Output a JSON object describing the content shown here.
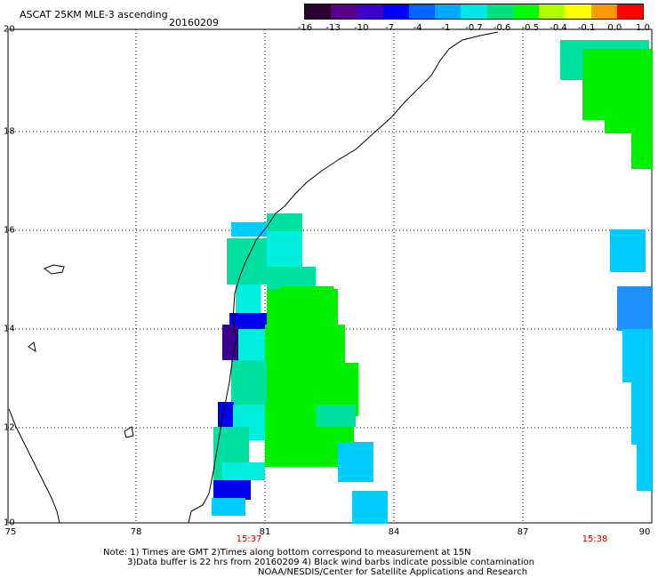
{
  "header": {
    "title": "ASCAT 25KM MLE-3 ascending",
    "date": "20160209"
  },
  "colorbar": {
    "ticks": [
      "-16",
      "-13",
      "-10",
      "-7",
      "-4",
      "-1",
      "-0.7",
      "-0.6",
      "-0.5",
      "-0.4",
      "-0.1",
      "0.0",
      "1.0"
    ],
    "colors": [
      "#2a0030",
      "#5a0088",
      "#3c00c8",
      "#0000ff",
      "#0066ff",
      "#00aaff",
      "#00e5e5",
      "#00e080",
      "#00ff00",
      "#b0ff00",
      "#ffff00",
      "#ff9900",
      "#ff0000"
    ]
  },
  "axes": {
    "lat_labels": [
      "20",
      "18",
      "16",
      "14",
      "12",
      "10"
    ],
    "lon_labels": [
      "75",
      "78",
      "81",
      "84",
      "87",
      "90"
    ],
    "times": [
      "15:37",
      "15:38"
    ]
  },
  "notes": {
    "line1": "Note: 1) Times are GMT 2)Times along bottom correspond to measurement at 15N",
    "line2": "3)Data buffer is 22 hrs from 20160209 4) Black wind barbs indicate possible contamination",
    "line3": "NOAA/NESDIS/Center for Satellite Applications and Research"
  }
}
